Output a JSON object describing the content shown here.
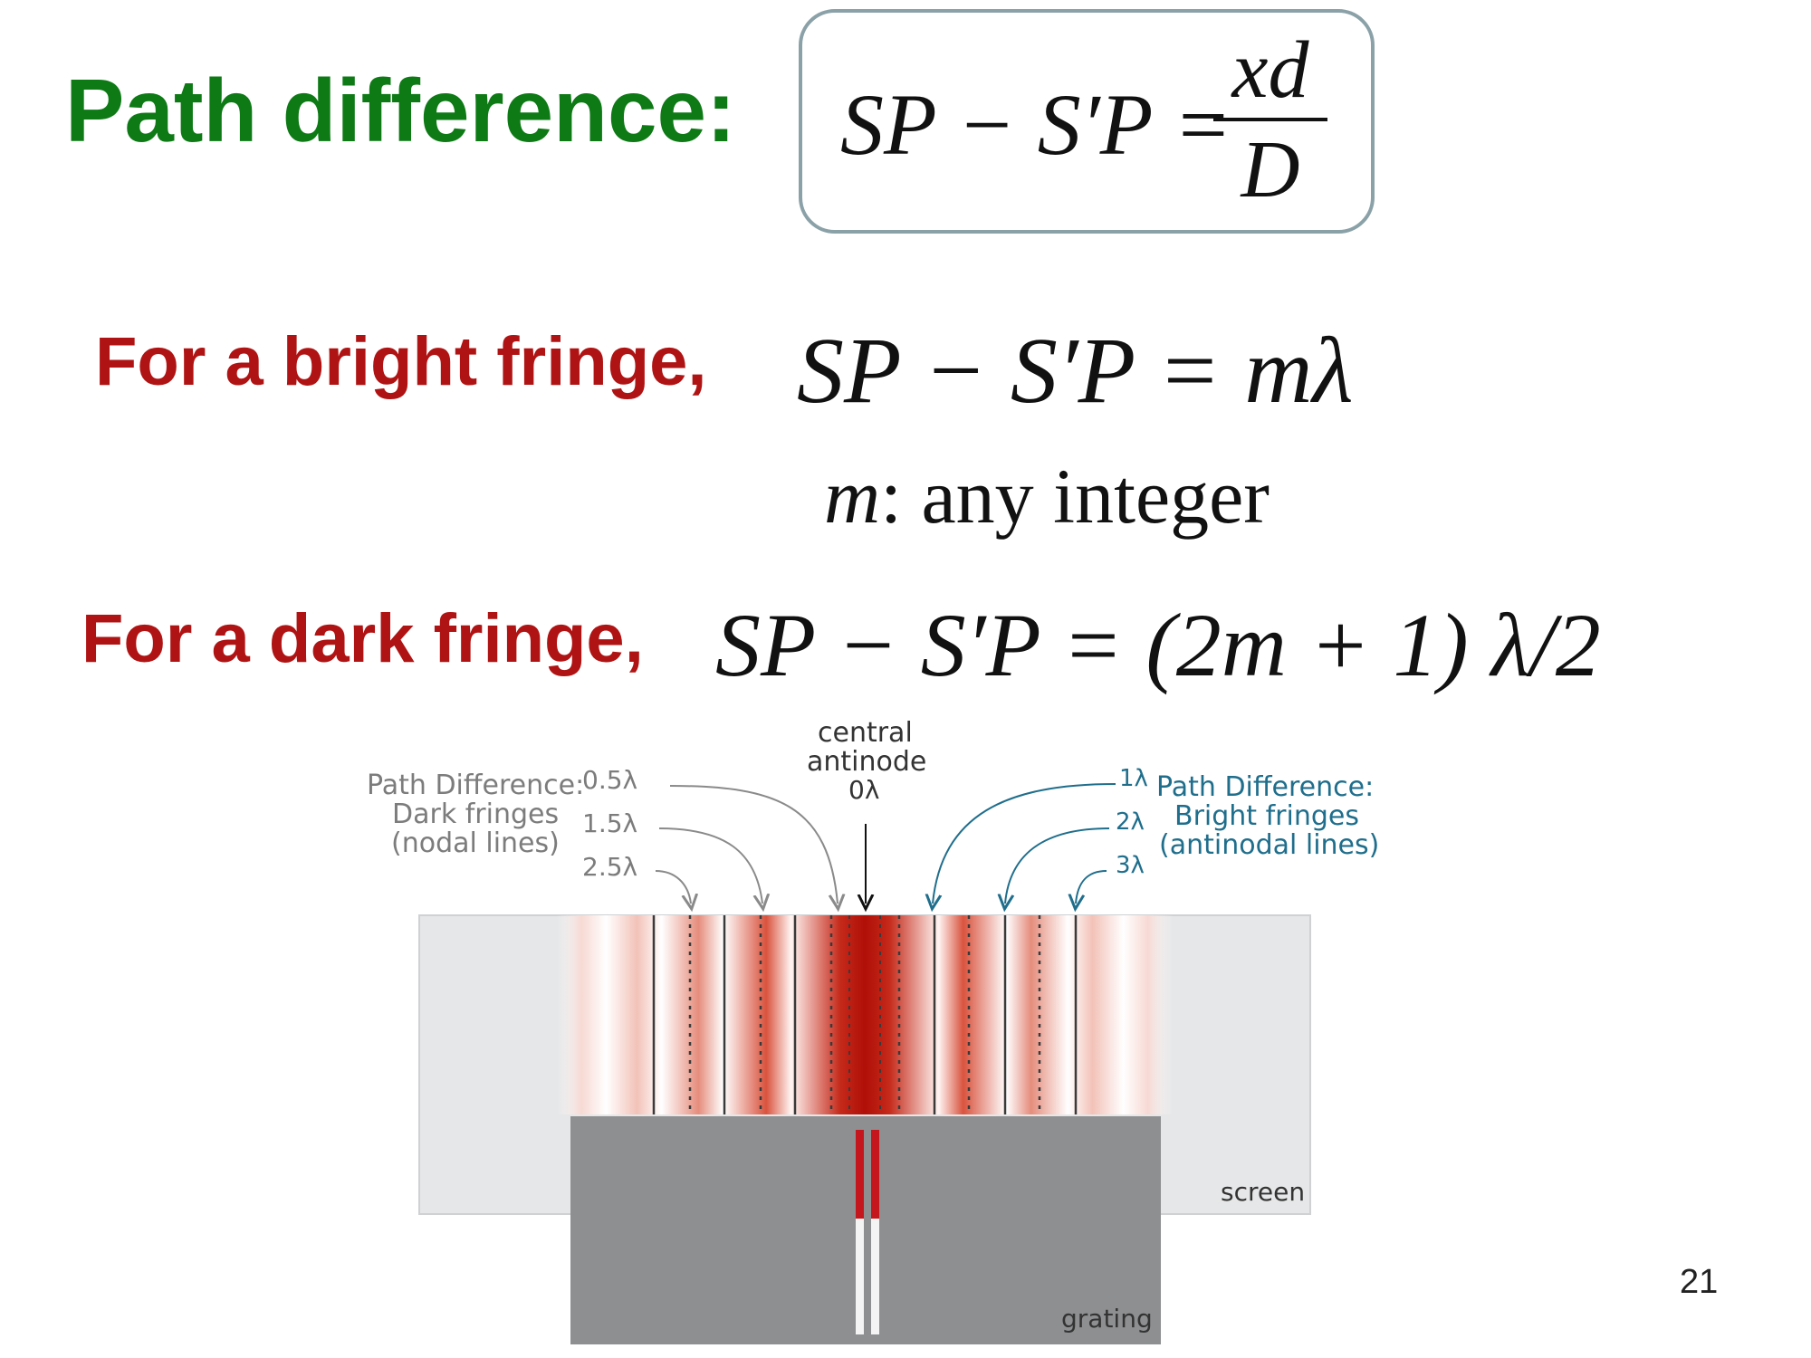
{
  "title": "Path difference:",
  "box_formula": {
    "lhs": "SP − S′P =",
    "numerator": "xd",
    "denominator": "D"
  },
  "bright": {
    "label": "For a bright fringe,",
    "equation": "SP − S′P = mλ",
    "note_var": "m",
    "note_text": ": any integer"
  },
  "dark": {
    "label": "For a dark fringe,",
    "equation": "SP − S′P = (2m + 1) λ/2"
  },
  "diagram": {
    "dark_fringes": {
      "heading": "Path Difference:",
      "line2": "Dark fringes",
      "line3": "(nodal lines)",
      "values": [
        "0.5λ",
        "1.5λ",
        "2.5λ"
      ]
    },
    "central": {
      "line1": "central",
      "line2": "antinode",
      "value": "0λ"
    },
    "bright_fringes": {
      "heading": "Path Difference:",
      "line2": "Bright fringes",
      "line3": "(antinodal lines)",
      "values": [
        "1λ",
        "2λ",
        "3λ"
      ]
    },
    "screen_label": "screen",
    "grating_label": "grating",
    "colors": {
      "fringe_red": "#c01a10",
      "screen": "#e6e7e8",
      "grating": "#8d8f91",
      "slit_red": "#c4161c"
    }
  },
  "page_number": "21"
}
